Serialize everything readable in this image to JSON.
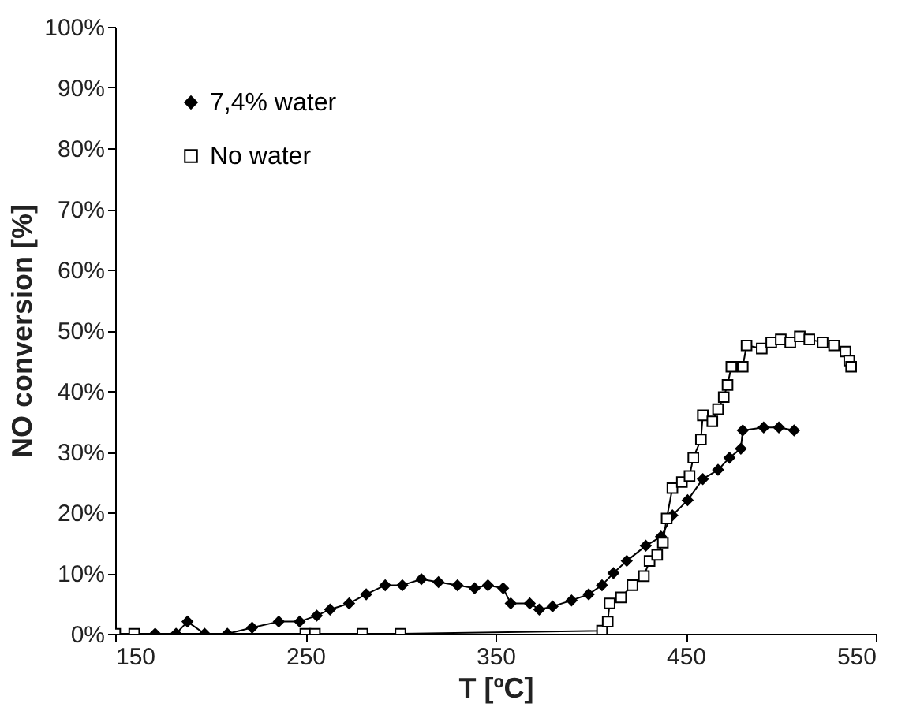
{
  "chart_data": {
    "type": "line",
    "xlabel": "T [ºC]",
    "ylabel": "NO conversion [%]",
    "xlim": [
      150,
      550
    ],
    "xticks": [
      150,
      250,
      350,
      450,
      550
    ],
    "ylim": [
      0,
      100
    ],
    "yticks": [
      {
        "value": 0,
        "label": "0%"
      },
      {
        "value": 10,
        "label": "10%"
      },
      {
        "value": 20,
        "label": "20%"
      },
      {
        "value": 30,
        "label": "30%"
      },
      {
        "value": 40,
        "label": "40%"
      },
      {
        "value": 50,
        "label": "50%"
      },
      {
        "value": 60,
        "label": "60%"
      },
      {
        "value": 70,
        "label": "70%"
      },
      {
        "value": 80,
        "label": "80%"
      },
      {
        "value": 90,
        "label": "90%"
      },
      {
        "value": 100,
        "label": "100%"
      }
    ],
    "grid": false,
    "legend": "top left",
    "line_style": "solid",
    "series": [
      {
        "name": "7,4% water",
        "color": "#000000",
        "marker": "diamond",
        "x": [
          171,
          182,
          188,
          197,
          209,
          222,
          236,
          247,
          256,
          263,
          273,
          282,
          292,
          301,
          311,
          320,
          330,
          339,
          346,
          354,
          358,
          368,
          373,
          380,
          390,
          399,
          406,
          412,
          419,
          429,
          437,
          443,
          451,
          459,
          467,
          473,
          479,
          480,
          491,
          499,
          507
        ],
        "values": [
          0,
          0,
          2,
          0,
          0,
          1,
          2,
          2,
          3,
          4,
          5,
          6.5,
          8,
          8,
          9,
          8.5,
          8,
          7.5,
          8,
          7.5,
          5,
          5,
          4,
          4.5,
          5.5,
          6.5,
          8,
          10,
          12,
          14.5,
          16,
          19.5,
          22,
          25.5,
          27,
          29,
          30.5,
          33.5,
          34,
          34,
          33.5
        ]
      },
      {
        "name": "No water",
        "color": "#000000",
        "marker": "square",
        "x": [
          150,
          160,
          250,
          255,
          280,
          300,
          406,
          409,
          410,
          416,
          422,
          428,
          431,
          435,
          438,
          440,
          443,
          448,
          452,
          454,
          458,
          459,
          464,
          467,
          470,
          472,
          474,
          480,
          482,
          490,
          495,
          500,
          505,
          510,
          515,
          522,
          528,
          534,
          536,
          537
        ],
        "values": [
          0,
          0,
          0,
          0,
          0,
          0,
          0.5,
          2,
          5,
          6,
          8,
          9.5,
          12,
          13,
          15,
          19,
          24,
          25,
          26,
          29,
          32,
          36,
          35,
          37,
          39,
          41,
          44,
          44,
          47.5,
          47,
          48,
          48.5,
          48,
          49,
          48.5,
          48,
          47.5,
          46.5,
          45,
          44
        ]
      }
    ]
  }
}
